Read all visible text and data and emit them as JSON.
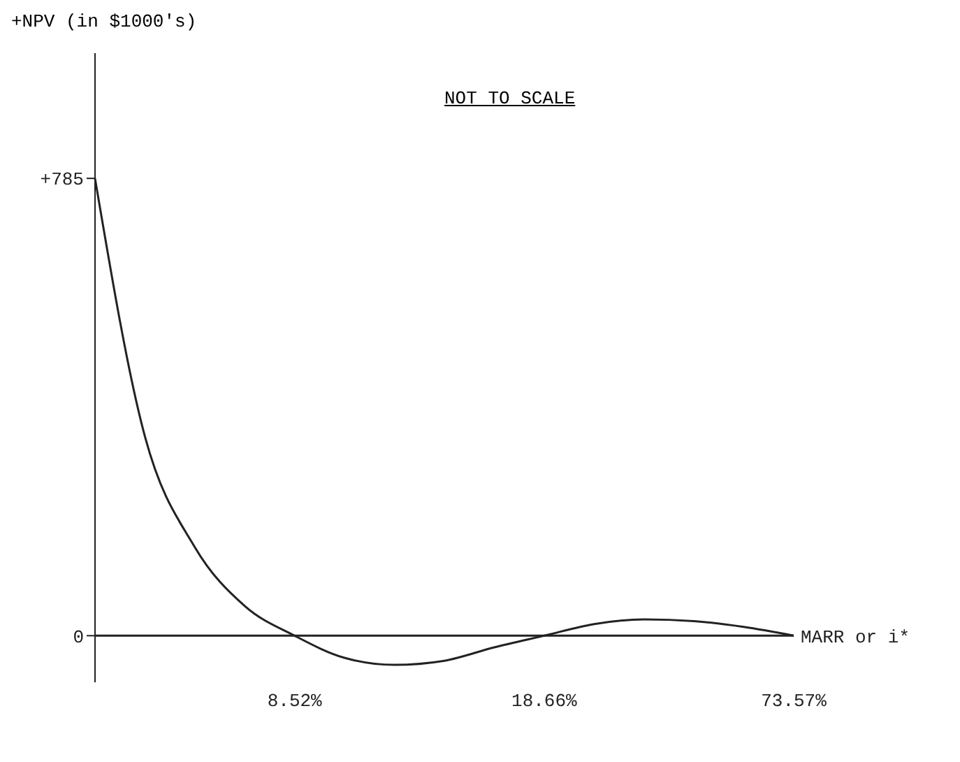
{
  "chart_data": {
    "type": "line",
    "ylabel": "+NPV (in $1000's)",
    "xlabel": "MARR or i*",
    "annotations": [
      "NOT TO SCALE"
    ],
    "categories": [
      null,
      null,
      null,
      null,
      "8.52%",
      null,
      null,
      null,
      null,
      "18.66%",
      null,
      null,
      null,
      null,
      "73.57%"
    ],
    "series": [
      {
        "color": "#222222",
        "values": [
          785,
          342,
          152,
          51,
          0,
          -38,
          -50,
          -43,
          -20,
          0,
          20,
          28,
          25,
          15,
          0
        ]
      }
    ],
    "ylim": [
      -80,
      1000
    ],
    "yticks": [
      0,
      {
        "value": 785,
        "label": "+785"
      }
    ],
    "marker": "none",
    "line_style": "solid"
  }
}
